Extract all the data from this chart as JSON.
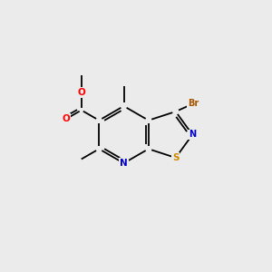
{
  "background_color": "#ebebeb",
  "atom_colors": {
    "N": "#0000cc",
    "O": "#ff0000",
    "S": "#cc8800",
    "Br": "#aa5500",
    "C": "#000000"
  },
  "bond_color": "#000000",
  "bond_lw": 1.3,
  "font_size_hetero": 7.5,
  "font_size_br": 7.0,
  "scale": 1.0
}
